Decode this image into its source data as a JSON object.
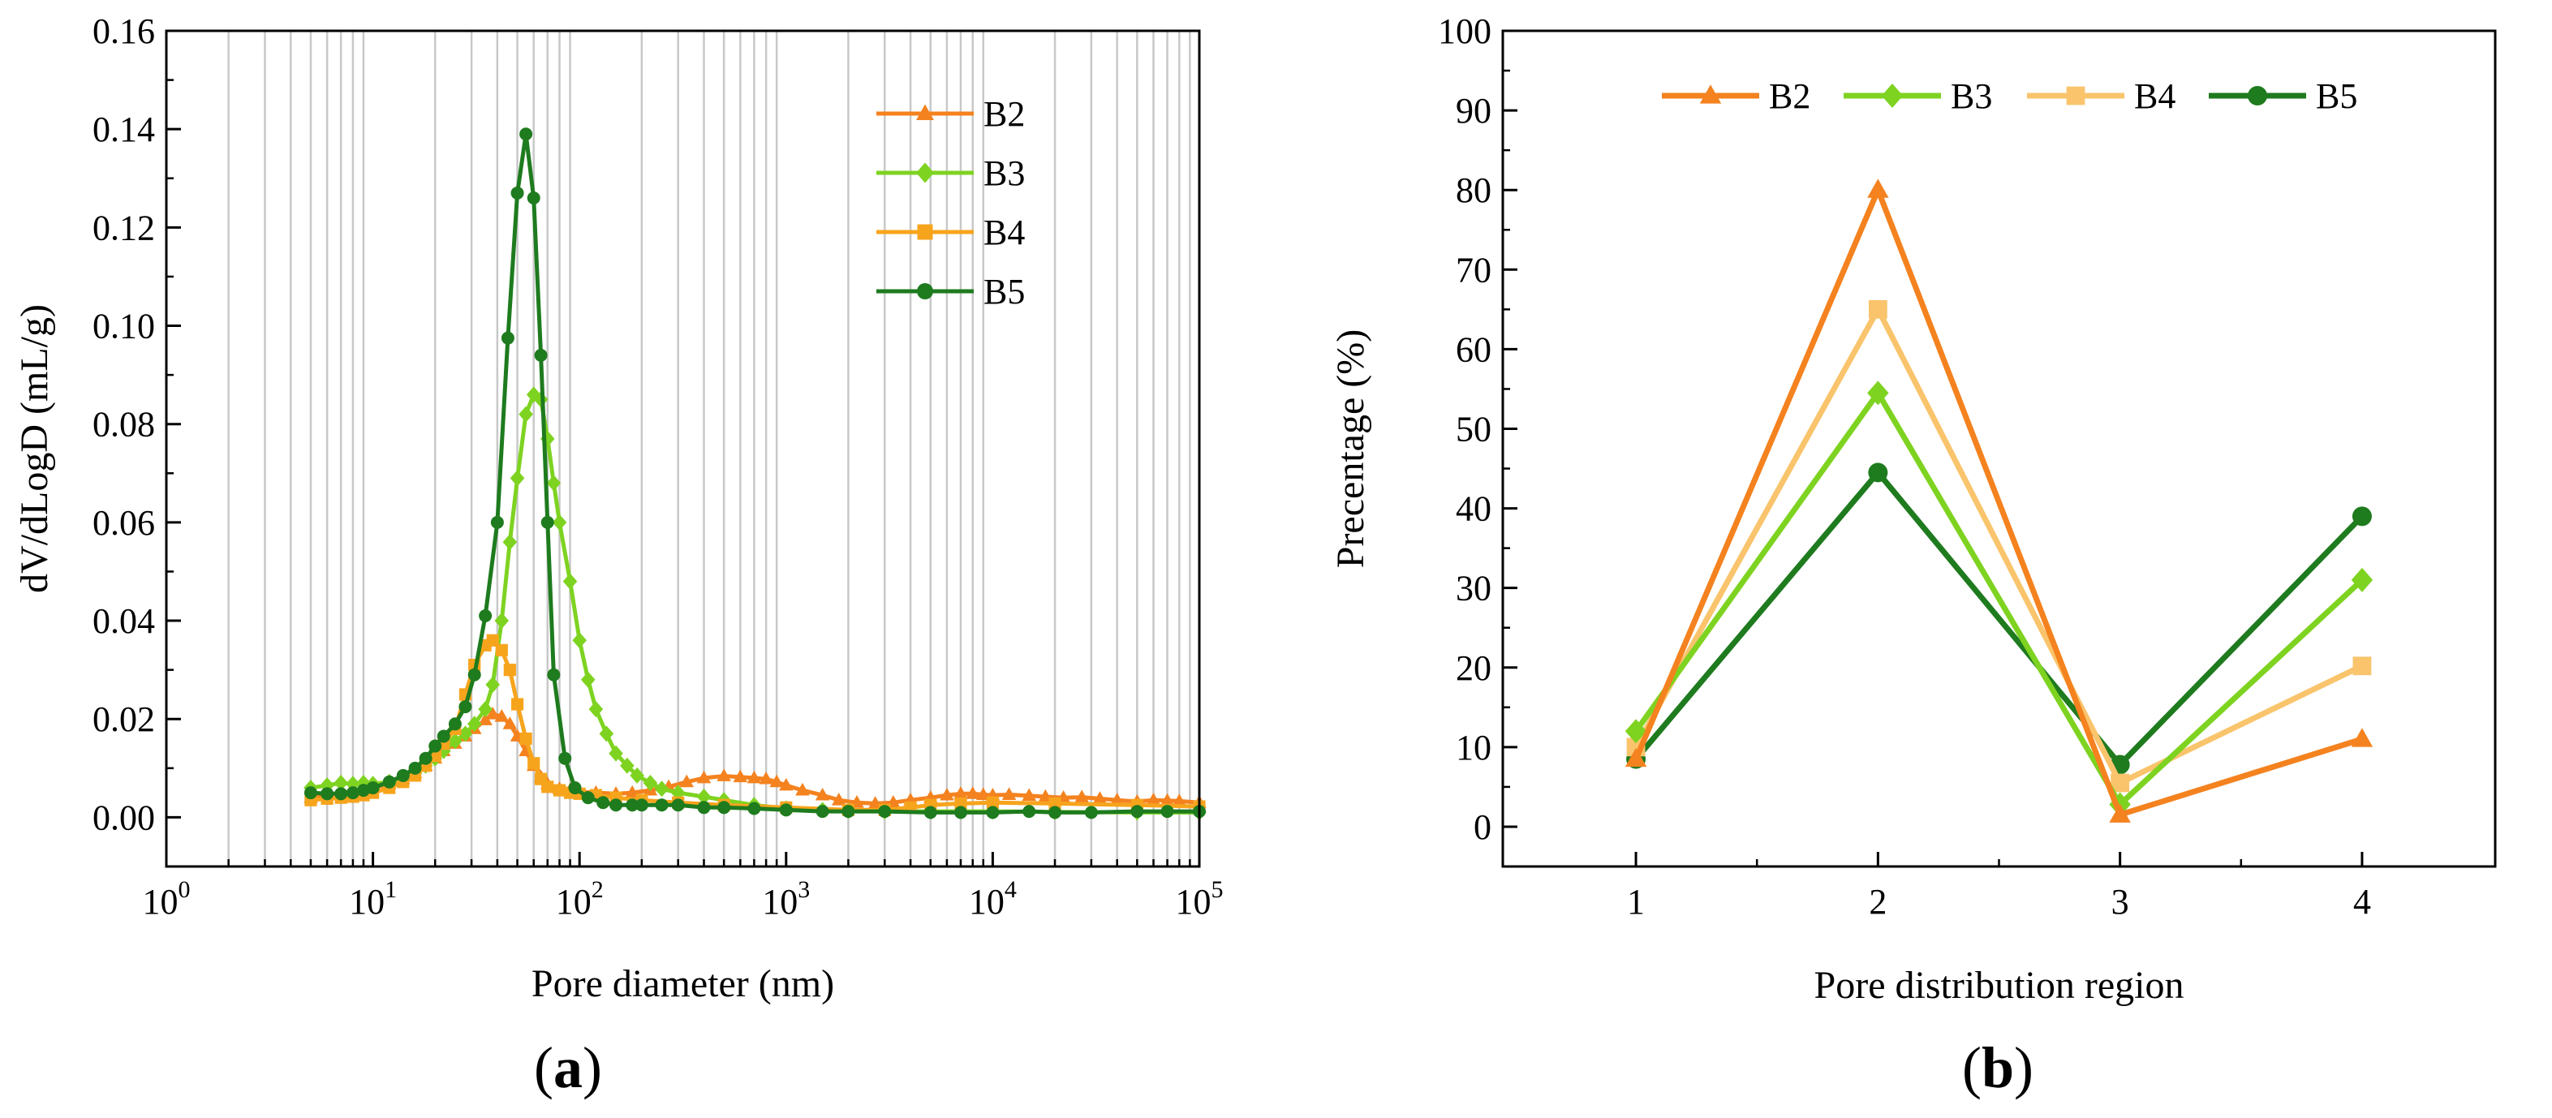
{
  "chart_data": [
    {
      "type": "line",
      "panel": "a",
      "caption_open": "(",
      "caption_letter": "a",
      "caption_close": ")",
      "xlabel": "Pore diameter (nm)",
      "ylabel": "dV/dLogD (mL/g)",
      "xscale": "log",
      "xlim": [
        1,
        100000
      ],
      "ylim": [
        -0.01,
        0.16
      ],
      "x_ticks": [
        {
          "base": "10",
          "exp": "0",
          "value": 1
        },
        {
          "base": "10",
          "exp": "1",
          "value": 10
        },
        {
          "base": "10",
          "exp": "2",
          "value": 100
        },
        {
          "base": "10",
          "exp": "3",
          "value": 1000
        },
        {
          "base": "10",
          "exp": "4",
          "value": 10000
        },
        {
          "base": "10",
          "exp": "5",
          "value": 100000
        }
      ],
      "y_ticks": [
        "0.00",
        "0.02",
        "0.04",
        "0.06",
        "0.08",
        "0.10",
        "0.12",
        "0.14",
        "0.16"
      ],
      "grid": "vertical log grid lines",
      "legend_position": "top-right",
      "series": [
        {
          "name": "B2",
          "color": "#F4821F",
          "marker": "triangle",
          "x": [
            5,
            6,
            7,
            8,
            9,
            10,
            12,
            14,
            16,
            18,
            20,
            22,
            25,
            28,
            31,
            35,
            38,
            42,
            46,
            50,
            55,
            60,
            65,
            70,
            80,
            90,
            100,
            120,
            150,
            180,
            220,
            270,
            330,
            400,
            500,
            600,
            700,
            800,
            900,
            1000,
            1200,
            1500,
            1800,
            2200,
            2700,
            3300,
            4000,
            5000,
            6000,
            7000,
            8000,
            9000,
            10000,
            12000,
            15000,
            18000,
            22000,
            27000,
            33000,
            40000,
            50000,
            60000,
            70000,
            80000,
            100000
          ],
          "values": [
            0.004,
            0.0045,
            0.005,
            0.0052,
            0.0055,
            0.006,
            0.0068,
            0.0078,
            0.009,
            0.0105,
            0.012,
            0.0135,
            0.015,
            0.0165,
            0.018,
            0.0198,
            0.021,
            0.0205,
            0.019,
            0.0165,
            0.0135,
            0.0105,
            0.0082,
            0.0068,
            0.0058,
            0.0055,
            0.0052,
            0.005,
            0.0048,
            0.005,
            0.0055,
            0.0062,
            0.0072,
            0.008,
            0.0084,
            0.0082,
            0.008,
            0.0078,
            0.0072,
            0.0065,
            0.0055,
            0.0045,
            0.0035,
            0.003,
            0.0028,
            0.003,
            0.0035,
            0.004,
            0.0045,
            0.0048,
            0.0048,
            0.0046,
            0.0045,
            0.0046,
            0.0044,
            0.0042,
            0.004,
            0.0041,
            0.0038,
            0.0035,
            0.0032,
            0.0035,
            0.0034,
            0.0033,
            0.003
          ]
        },
        {
          "name": "B3",
          "color": "#7ED321",
          "marker": "diamond",
          "x": [
            5,
            6,
            7,
            8,
            9,
            10,
            12,
            14,
            16,
            18,
            20,
            22,
            25,
            28,
            31,
            35,
            38,
            42,
            46,
            50,
            55,
            60,
            65,
            70,
            75,
            80,
            90,
            100,
            110,
            120,
            135,
            150,
            170,
            190,
            220,
            250,
            300,
            400,
            500,
            700,
            1000,
            1500,
            2000,
            3000,
            5000,
            7000,
            10000,
            20000,
            50000,
            100000
          ],
          "values": [
            0.006,
            0.0065,
            0.007,
            0.0068,
            0.007,
            0.0068,
            0.0072,
            0.0078,
            0.009,
            0.0105,
            0.012,
            0.0135,
            0.0155,
            0.017,
            0.019,
            0.022,
            0.027,
            0.04,
            0.056,
            0.069,
            0.082,
            0.086,
            0.085,
            0.077,
            0.068,
            0.06,
            0.048,
            0.036,
            0.028,
            0.022,
            0.017,
            0.013,
            0.0105,
            0.0085,
            0.007,
            0.0058,
            0.005,
            0.0042,
            0.0035,
            0.0025,
            0.0018,
            0.0015,
            0.0013,
            0.0012,
            0.0012,
            0.0012,
            0.0012,
            0.0011,
            0.001,
            0.001
          ]
        },
        {
          "name": "B4",
          "color": "#F7A41D",
          "marker": "square",
          "x": [
            5,
            6,
            7,
            8,
            9,
            10,
            12,
            14,
            16,
            18,
            20,
            22,
            25,
            28,
            31,
            35,
            38,
            42,
            46,
            50,
            55,
            60,
            65,
            70,
            80,
            90,
            100,
            120,
            150,
            200,
            300,
            500,
            1000,
            2000,
            3000,
            4000,
            5000,
            7000,
            10000,
            20000,
            50000,
            100000
          ],
          "values": [
            0.0035,
            0.0038,
            0.004,
            0.0042,
            0.0045,
            0.005,
            0.006,
            0.0072,
            0.0085,
            0.0105,
            0.0125,
            0.015,
            0.018,
            0.025,
            0.031,
            0.035,
            0.036,
            0.034,
            0.03,
            0.023,
            0.016,
            0.011,
            0.0078,
            0.0062,
            0.0055,
            0.005,
            0.0048,
            0.0045,
            0.004,
            0.0035,
            0.003,
            0.0025,
            0.002,
            0.0015,
            0.0015,
            0.002,
            0.0025,
            0.0028,
            0.003,
            0.0028,
            0.0025,
            0.0022
          ]
        },
        {
          "name": "B5",
          "color": "#1E7B1E",
          "marker": "circle",
          "x": [
            5,
            6,
            7,
            8,
            9,
            10,
            12,
            14,
            16,
            18,
            20,
            22,
            25,
            28,
            31,
            35,
            40,
            45,
            50,
            55,
            60,
            65,
            70,
            75,
            85,
            95,
            110,
            130,
            150,
            180,
            200,
            250,
            300,
            400,
            500,
            700,
            1000,
            1500,
            2000,
            3000,
            5000,
            7000,
            10000,
            15000,
            20000,
            30000,
            50000,
            70000,
            100000
          ],
          "values": [
            0.005,
            0.0048,
            0.0048,
            0.005,
            0.0055,
            0.006,
            0.0072,
            0.0085,
            0.01,
            0.012,
            0.0145,
            0.0165,
            0.019,
            0.0225,
            0.029,
            0.041,
            0.06,
            0.0975,
            0.127,
            0.139,
            0.126,
            0.094,
            0.06,
            0.029,
            0.012,
            0.006,
            0.004,
            0.003,
            0.0025,
            0.0025,
            0.0025,
            0.0025,
            0.0025,
            0.002,
            0.002,
            0.0018,
            0.0015,
            0.0012,
            0.0012,
            0.0012,
            0.001,
            0.001,
            0.001,
            0.0012,
            0.001,
            0.001,
            0.0012,
            0.0012,
            0.0012
          ]
        }
      ]
    },
    {
      "type": "line",
      "panel": "b",
      "caption_open": "(",
      "caption_letter": "b",
      "caption_close": ")",
      "xlabel": "Pore distribution region",
      "ylabel": "Precentage (%)",
      "xlim": [
        0.45,
        4.55
      ],
      "ylim": [
        -5,
        100
      ],
      "categories": [
        "1",
        "2",
        "3",
        "4"
      ],
      "y_ticks": [
        "0",
        "10",
        "20",
        "30",
        "40",
        "50",
        "60",
        "70",
        "80",
        "90",
        "100"
      ],
      "grid": false,
      "legend_position": "top",
      "series": [
        {
          "name": "B2",
          "color": "#F4821F",
          "marker": "triangle",
          "values": [
            8.5,
            80,
            1.5,
            11
          ]
        },
        {
          "name": "B3",
          "color": "#7ED321",
          "marker": "diamond",
          "values": [
            12,
            54.5,
            2.8,
            31
          ]
        },
        {
          "name": "B4",
          "color": "#F9C46C",
          "marker": "square",
          "values": [
            10,
            65,
            5.5,
            20.2
          ]
        },
        {
          "name": "B5",
          "color": "#1E7B1E",
          "marker": "circle",
          "values": [
            8.5,
            44.5,
            7.8,
            39
          ]
        }
      ]
    }
  ]
}
